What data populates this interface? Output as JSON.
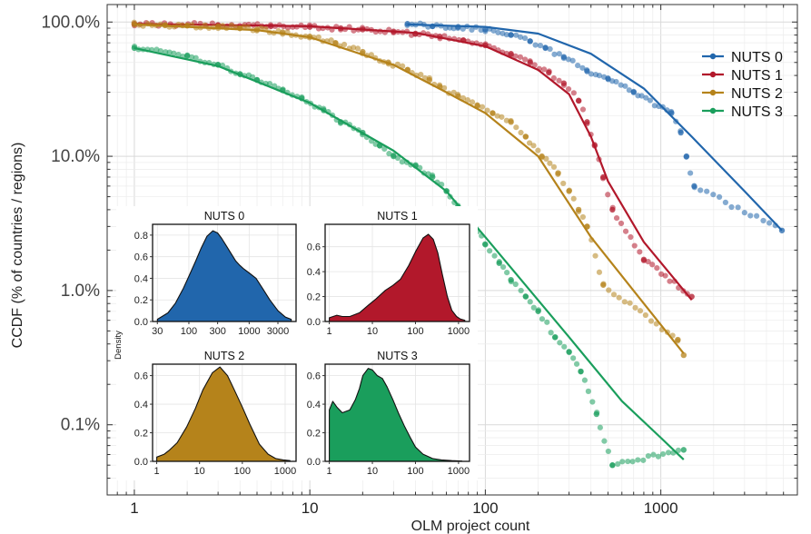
{
  "chart_data": [
    {
      "type": "scatter",
      "xlabel": "OLM project count",
      "ylabel": "CCDF (% of countries / regions)",
      "xscale": "log",
      "yscale": "log",
      "xlim": [
        0.7,
        6000
      ],
      "ylim": [
        0.0003,
        1.35
      ],
      "xticks": [
        1,
        10,
        100,
        1000
      ],
      "xtick_labels": [
        "1",
        "10",
        "100",
        "1000"
      ],
      "yticks": [
        0.001,
        0.01,
        0.1,
        1
      ],
      "ytick_labels": [
        "0.1%",
        "1.0%",
        "10.0%",
        "100.0%"
      ],
      "grid": true,
      "legend_position": "top-right",
      "series": [
        {
          "name": "NUTS 0",
          "color": "#2166ac",
          "points": [
            [
              36,
              0.97
            ],
            [
              50,
              0.93
            ],
            [
              70,
              0.92
            ],
            [
              100,
              0.88
            ],
            [
              140,
              0.8
            ],
            [
              180,
              0.72
            ],
            [
              220,
              0.64
            ],
            [
              280,
              0.55
            ],
            [
              380,
              0.43
            ],
            [
              500,
              0.38
            ],
            [
              700,
              0.3
            ],
            [
              1150,
              0.21
            ],
            [
              1300,
              0.15
            ],
            [
              1400,
              0.1
            ],
            [
              1550,
              0.06
            ],
            [
              4900,
              0.028
            ]
          ],
          "fit": [
            [
              36,
              0.96
            ],
            [
              100,
              0.92
            ],
            [
              200,
              0.82
            ],
            [
              400,
              0.58
            ],
            [
              800,
              0.32
            ],
            [
              1500,
              0.14
            ],
            [
              3000,
              0.055
            ],
            [
              4900,
              0.028
            ]
          ]
        },
        {
          "name": "NUTS 1",
          "color": "#b2182b",
          "points": [
            [
              1,
              0.97
            ],
            [
              3,
              0.95
            ],
            [
              6,
              0.93
            ],
            [
              10,
              0.92
            ],
            [
              15,
              0.9
            ],
            [
              20,
              0.88
            ],
            [
              30,
              0.85
            ],
            [
              40,
              0.82
            ],
            [
              55,
              0.78
            ],
            [
              75,
              0.73
            ],
            [
              100,
              0.67
            ],
            [
              140,
              0.58
            ],
            [
              180,
              0.5
            ],
            [
              230,
              0.42
            ],
            [
              280,
              0.35
            ],
            [
              340,
              0.26
            ],
            [
              380,
              0.18
            ],
            [
              420,
              0.12
            ],
            [
              470,
              0.07
            ],
            [
              530,
              0.04
            ],
            [
              800,
              0.017
            ],
            [
              1500,
              0.009
            ]
          ],
          "fit": [
            [
              1,
              0.97
            ],
            [
              10,
              0.93
            ],
            [
              40,
              0.83
            ],
            [
              100,
              0.66
            ],
            [
              200,
              0.44
            ],
            [
              300,
              0.29
            ],
            [
              400,
              0.14
            ],
            [
              500,
              0.065
            ],
            [
              800,
              0.023
            ],
            [
              1500,
              0.0085
            ]
          ]
        },
        {
          "name": "NUTS 2",
          "color": "#b5831b",
          "points": [
            [
              1,
              0.96
            ],
            [
              1.5,
              0.95
            ],
            [
              2,
              0.94
            ],
            [
              3,
              0.93
            ],
            [
              4,
              0.9
            ],
            [
              5,
              0.88
            ],
            [
              7,
              0.84
            ],
            [
              10,
              0.78
            ],
            [
              14,
              0.7
            ],
            [
              20,
              0.6
            ],
            [
              28,
              0.5
            ],
            [
              36,
              0.44
            ],
            [
              48,
              0.37
            ],
            [
              55,
              0.33
            ],
            [
              70,
              0.28
            ],
            [
              90,
              0.24
            ],
            [
              110,
              0.21
            ],
            [
              140,
              0.18
            ],
            [
              170,
              0.14
            ],
            [
              210,
              0.1
            ],
            [
              260,
              0.075
            ],
            [
              300,
              0.055
            ],
            [
              340,
              0.04
            ],
            [
              380,
              0.03
            ],
            [
              470,
              0.011
            ],
            [
              1250,
              0.0043
            ],
            [
              1350,
              0.0033
            ]
          ],
          "fit": [
            [
              1,
              0.96
            ],
            [
              5,
              0.87
            ],
            [
              10,
              0.77
            ],
            [
              30,
              0.48
            ],
            [
              60,
              0.3
            ],
            [
              100,
              0.21
            ],
            [
              200,
              0.1
            ],
            [
              400,
              0.025
            ],
            [
              800,
              0.008
            ],
            [
              1350,
              0.0034
            ]
          ]
        },
        {
          "name": "NUTS 3",
          "color": "#1a9e5c",
          "points": [
            [
              1,
              0.64
            ],
            [
              2,
              0.56
            ],
            [
              3,
              0.48
            ],
            [
              4,
              0.41
            ],
            [
              5,
              0.37
            ],
            [
              7,
              0.31
            ],
            [
              9,
              0.27
            ],
            [
              12,
              0.22
            ],
            [
              15,
              0.18
            ],
            [
              20,
              0.15
            ],
            [
              25,
              0.12
            ],
            [
              30,
              0.1
            ],
            [
              40,
              0.085
            ],
            [
              50,
              0.07
            ],
            [
              60,
              0.055
            ],
            [
              70,
              0.042
            ],
            [
              85,
              0.032
            ],
            [
              100,
              0.022
            ],
            [
              120,
              0.016
            ],
            [
              140,
              0.012
            ],
            [
              170,
              0.009
            ],
            [
              200,
              0.007
            ],
            [
              250,
              0.0045
            ],
            [
              300,
              0.0035
            ],
            [
              350,
              0.0025
            ],
            [
              430,
              0.0012
            ],
            [
              530,
              0.0005
            ],
            [
              1350,
              0.00065
            ]
          ],
          "fit": [
            [
              1,
              0.64
            ],
            [
              3,
              0.47
            ],
            [
              10,
              0.25
            ],
            [
              30,
              0.11
            ],
            [
              60,
              0.055
            ],
            [
              100,
              0.025
            ],
            [
              300,
              0.0045
            ],
            [
              600,
              0.0015
            ],
            [
              1000,
              0.0008
            ],
            [
              1350,
              0.00055
            ]
          ]
        }
      ]
    },
    {
      "type": "area",
      "title": "NUTS 0",
      "xscale": "log",
      "xlim": [
        25,
        6000
      ],
      "ylim": [
        0,
        0.9
      ],
      "ylabel": "Density",
      "color": "#2166ac",
      "xticks": [
        30,
        100,
        300,
        1000,
        3000
      ],
      "xtick_labels": [
        "30",
        "100",
        "300",
        "1000",
        "3000"
      ],
      "yticks": [
        0,
        0.2,
        0.4,
        0.6,
        0.8
      ],
      "ytick_labels": [
        "0.0",
        "0.2",
        "0.4",
        "0.6",
        "0.8"
      ],
      "x": [
        30,
        45,
        60,
        80,
        100,
        130,
        160,
        200,
        250,
        300,
        350,
        420,
        500,
        600,
        700,
        800,
        1000,
        1300,
        1700,
        2200,
        3000,
        4000,
        5000
      ],
      "y": [
        0.02,
        0.08,
        0.17,
        0.3,
        0.42,
        0.56,
        0.68,
        0.79,
        0.84,
        0.82,
        0.77,
        0.7,
        0.63,
        0.56,
        0.52,
        0.49,
        0.45,
        0.4,
        0.3,
        0.2,
        0.1,
        0.04,
        0.02
      ]
    },
    {
      "type": "area",
      "title": "NUTS 1",
      "xscale": "log",
      "xlim": [
        0.8,
        1800
      ],
      "ylim": [
        0,
        0.78
      ],
      "ylabel": "",
      "color": "#b2182b",
      "xticks": [
        1,
        10,
        100,
        1000
      ],
      "xtick_labels": [
        "1",
        "10",
        "100",
        "1000"
      ],
      "yticks": [
        0,
        0.2,
        0.4,
        0.6
      ],
      "ytick_labels": [
        "0.0",
        "0.2",
        "0.4",
        "0.6"
      ],
      "x": [
        1,
        1.5,
        2,
        3,
        5,
        8,
        12,
        20,
        30,
        45,
        70,
        100,
        150,
        200,
        260,
        330,
        420,
        550,
        700,
        900,
        1100,
        1400
      ],
      "y": [
        0.03,
        0.05,
        0.04,
        0.04,
        0.07,
        0.13,
        0.18,
        0.25,
        0.29,
        0.34,
        0.45,
        0.56,
        0.67,
        0.7,
        0.66,
        0.55,
        0.38,
        0.2,
        0.09,
        0.04,
        0.02,
        0.01
      ]
    },
    {
      "type": "area",
      "title": "NUTS 2",
      "xscale": "log",
      "xlim": [
        0.8,
        1800
      ],
      "ylim": [
        0,
        0.68
      ],
      "ylabel": "",
      "color": "#b5831b",
      "xticks": [
        1,
        10,
        100,
        1000
      ],
      "xtick_labels": [
        "1",
        "10",
        "100",
        "1000"
      ],
      "yticks": [
        0,
        0.2,
        0.4,
        0.6
      ],
      "ytick_labels": [
        "0.0",
        "0.2",
        "0.4",
        "0.6"
      ],
      "x": [
        1,
        1.5,
        2,
        3,
        5,
        8,
        12,
        20,
        30,
        45,
        65,
        100,
        150,
        250,
        400,
        600,
        900,
        1300
      ],
      "y": [
        0.03,
        0.05,
        0.08,
        0.13,
        0.24,
        0.37,
        0.5,
        0.62,
        0.66,
        0.6,
        0.5,
        0.38,
        0.26,
        0.12,
        0.05,
        0.02,
        0.01,
        0.005
      ]
    },
    {
      "type": "area",
      "title": "NUTS 3",
      "xscale": "log",
      "xlim": [
        0.8,
        1800
      ],
      "ylim": [
        0,
        0.68
      ],
      "ylabel": "",
      "color": "#1a9e5c",
      "xticks": [
        1,
        10,
        100,
        1000
      ],
      "xtick_labels": [
        "1",
        "10",
        "100",
        "1000"
      ],
      "yticks": [
        0,
        0.2,
        0.4,
        0.6
      ],
      "ytick_labels": [
        "0.0",
        "0.2",
        "0.4",
        "0.6"
      ],
      "x": [
        1,
        1.2,
        1.5,
        2,
        3,
        4,
        5,
        6,
        8,
        10,
        13,
        17,
        22,
        30,
        40,
        55,
        75,
        100,
        150,
        250,
        400,
        700,
        1200
      ],
      "y": [
        0.36,
        0.42,
        0.38,
        0.34,
        0.36,
        0.43,
        0.51,
        0.6,
        0.65,
        0.64,
        0.6,
        0.58,
        0.52,
        0.43,
        0.34,
        0.25,
        0.17,
        0.1,
        0.05,
        0.02,
        0.01,
        0.005,
        0.002
      ]
    }
  ]
}
